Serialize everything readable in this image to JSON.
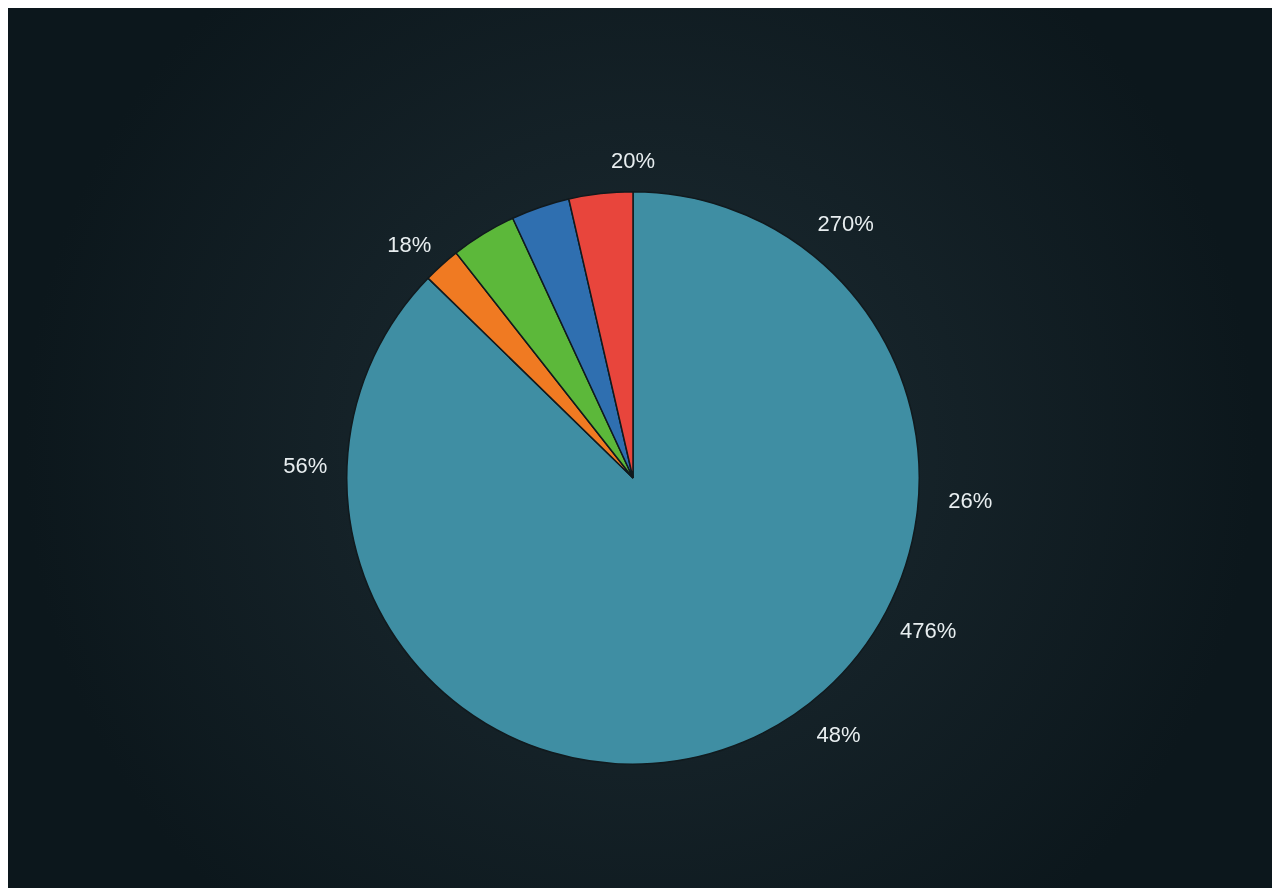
{
  "chart_data": {
    "type": "pie",
    "categories": [
      null,
      null,
      null,
      null,
      null
    ],
    "values": [
      87.3,
      2.1,
      3.7,
      3.3,
      3.6
    ],
    "colors": [
      "#3f8ea3",
      "#f07a22",
      "#5cb83a",
      "#2f6fb0",
      "#e8453c"
    ],
    "annotations": [
      "20%",
      "270%",
      "18%",
      "56%",
      "26%",
      "476%",
      "48%"
    ],
    "legend": false
  }
}
